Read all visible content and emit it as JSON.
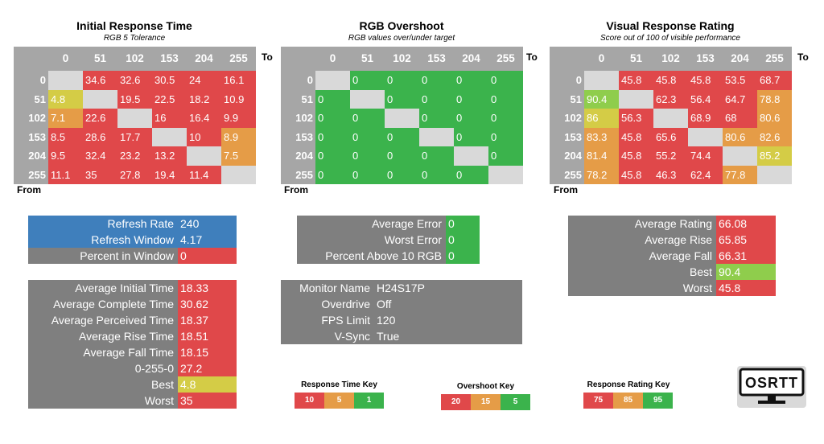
{
  "panels": [
    {
      "title": "Initial Response Time",
      "subtitle": "RGB 5 Tolerance",
      "to": "To",
      "from": "From",
      "cols": [
        "0",
        "51",
        "102",
        "153",
        "204",
        "255"
      ],
      "rows": [
        {
          "label": "0",
          "cells": [
            {
              "v": "",
              "c": "diag"
            },
            {
              "v": "34.6",
              "c": "red"
            },
            {
              "v": "32.6",
              "c": "red"
            },
            {
              "v": "30.5",
              "c": "red"
            },
            {
              "v": "24",
              "c": "red"
            },
            {
              "v": "16.1",
              "c": "red"
            }
          ]
        },
        {
          "label": "51",
          "cells": [
            {
              "v": "4.8",
              "c": "yellow"
            },
            {
              "v": "",
              "c": "diag"
            },
            {
              "v": "19.5",
              "c": "red"
            },
            {
              "v": "22.5",
              "c": "red"
            },
            {
              "v": "18.2",
              "c": "red"
            },
            {
              "v": "10.9",
              "c": "red"
            }
          ]
        },
        {
          "label": "102",
          "cells": [
            {
              "v": "7.1",
              "c": "orange"
            },
            {
              "v": "22.6",
              "c": "red"
            },
            {
              "v": "",
              "c": "diag"
            },
            {
              "v": "16",
              "c": "red"
            },
            {
              "v": "16.4",
              "c": "red"
            },
            {
              "v": "9.9",
              "c": "red"
            }
          ]
        },
        {
          "label": "153",
          "cells": [
            {
              "v": "8.5",
              "c": "red"
            },
            {
              "v": "28.6",
              "c": "red"
            },
            {
              "v": "17.7",
              "c": "red"
            },
            {
              "v": "",
              "c": "diag"
            },
            {
              "v": "10",
              "c": "red"
            },
            {
              "v": "8.9",
              "c": "orange"
            }
          ]
        },
        {
          "label": "204",
          "cells": [
            {
              "v": "9.5",
              "c": "red"
            },
            {
              "v": "32.4",
              "c": "red"
            },
            {
              "v": "23.2",
              "c": "red"
            },
            {
              "v": "13.2",
              "c": "red"
            },
            {
              "v": "",
              "c": "diag"
            },
            {
              "v": "7.5",
              "c": "orange"
            }
          ]
        },
        {
          "label": "255",
          "cells": [
            {
              "v": "11.1",
              "c": "red"
            },
            {
              "v": "35",
              "c": "red"
            },
            {
              "v": "27.8",
              "c": "red"
            },
            {
              "v": "19.4",
              "c": "red"
            },
            {
              "v": "11.4",
              "c": "red"
            },
            {
              "v": "",
              "c": "diag"
            }
          ]
        }
      ]
    },
    {
      "title": "RGB Overshoot",
      "subtitle": "RGB values over/under target",
      "to": "To",
      "from": "From",
      "cols": [
        "0",
        "51",
        "102",
        "153",
        "204",
        "255"
      ],
      "rows": [
        {
          "label": "0",
          "cells": [
            {
              "v": "",
              "c": "diag"
            },
            {
              "v": "0",
              "c": "green"
            },
            {
              "v": "0",
              "c": "green"
            },
            {
              "v": "0",
              "c": "green"
            },
            {
              "v": "0",
              "c": "green"
            },
            {
              "v": "0",
              "c": "green"
            }
          ]
        },
        {
          "label": "51",
          "cells": [
            {
              "v": "0",
              "c": "green"
            },
            {
              "v": "",
              "c": "diag"
            },
            {
              "v": "0",
              "c": "green"
            },
            {
              "v": "0",
              "c": "green"
            },
            {
              "v": "0",
              "c": "green"
            },
            {
              "v": "0",
              "c": "green"
            }
          ]
        },
        {
          "label": "102",
          "cells": [
            {
              "v": "0",
              "c": "green"
            },
            {
              "v": "0",
              "c": "green"
            },
            {
              "v": "",
              "c": "diag"
            },
            {
              "v": "0",
              "c": "green"
            },
            {
              "v": "0",
              "c": "green"
            },
            {
              "v": "0",
              "c": "green"
            }
          ]
        },
        {
          "label": "153",
          "cells": [
            {
              "v": "0",
              "c": "green"
            },
            {
              "v": "0",
              "c": "green"
            },
            {
              "v": "0",
              "c": "green"
            },
            {
              "v": "",
              "c": "diag"
            },
            {
              "v": "0",
              "c": "green"
            },
            {
              "v": "0",
              "c": "green"
            }
          ]
        },
        {
          "label": "204",
          "cells": [
            {
              "v": "0",
              "c": "green"
            },
            {
              "v": "0",
              "c": "green"
            },
            {
              "v": "0",
              "c": "green"
            },
            {
              "v": "0",
              "c": "green"
            },
            {
              "v": "",
              "c": "diag"
            },
            {
              "v": "0",
              "c": "green"
            }
          ]
        },
        {
          "label": "255",
          "cells": [
            {
              "v": "0",
              "c": "green"
            },
            {
              "v": "0",
              "c": "green"
            },
            {
              "v": "0",
              "c": "green"
            },
            {
              "v": "0",
              "c": "green"
            },
            {
              "v": "0",
              "c": "green"
            },
            {
              "v": "",
              "c": "diag"
            }
          ]
        }
      ]
    },
    {
      "title": "Visual Response Rating",
      "subtitle": "Score out of 100 of visible performance",
      "to": "To",
      "from": "From",
      "cols": [
        "0",
        "51",
        "102",
        "153",
        "204",
        "255"
      ],
      "rows": [
        {
          "label": "0",
          "cells": [
            {
              "v": "",
              "c": "diag"
            },
            {
              "v": "45.8",
              "c": "red"
            },
            {
              "v": "45.8",
              "c": "red"
            },
            {
              "v": "45.8",
              "c": "red"
            },
            {
              "v": "53.5",
              "c": "red"
            },
            {
              "v": "68.7",
              "c": "red"
            }
          ]
        },
        {
          "label": "51",
          "cells": [
            {
              "v": "90.4",
              "c": "lgreen"
            },
            {
              "v": "",
              "c": "diag"
            },
            {
              "v": "62.3",
              "c": "red"
            },
            {
              "v": "56.4",
              "c": "red"
            },
            {
              "v": "64.7",
              "c": "red"
            },
            {
              "v": "78.8",
              "c": "orange"
            }
          ]
        },
        {
          "label": "102",
          "cells": [
            {
              "v": "86",
              "c": "yellow"
            },
            {
              "v": "56.3",
              "c": "red"
            },
            {
              "v": "",
              "c": "diag"
            },
            {
              "v": "68.9",
              "c": "red"
            },
            {
              "v": "68",
              "c": "red"
            },
            {
              "v": "80.6",
              "c": "orange"
            }
          ]
        },
        {
          "label": "153",
          "cells": [
            {
              "v": "83.3",
              "c": "orange"
            },
            {
              "v": "45.8",
              "c": "red"
            },
            {
              "v": "65.6",
              "c": "red"
            },
            {
              "v": "",
              "c": "diag"
            },
            {
              "v": "80.6",
              "c": "orange"
            },
            {
              "v": "82.6",
              "c": "orange"
            }
          ]
        },
        {
          "label": "204",
          "cells": [
            {
              "v": "81.4",
              "c": "orange"
            },
            {
              "v": "45.8",
              "c": "red"
            },
            {
              "v": "55.2",
              "c": "red"
            },
            {
              "v": "74.4",
              "c": "red"
            },
            {
              "v": "",
              "c": "diag"
            },
            {
              "v": "85.2",
              "c": "yellow"
            }
          ]
        },
        {
          "label": "255",
          "cells": [
            {
              "v": "78.2",
              "c": "orange"
            },
            {
              "v": "45.8",
              "c": "red"
            },
            {
              "v": "46.3",
              "c": "red"
            },
            {
              "v": "62.4",
              "c": "red"
            },
            {
              "v": "77.8",
              "c": "orange"
            },
            {
              "v": "",
              "c": "diag"
            }
          ]
        }
      ]
    }
  ],
  "refresh": [
    {
      "label": "Refresh Rate",
      "value": "240",
      "lc": "blue",
      "vc": "blue"
    },
    {
      "label": "Refresh Window",
      "value": "4.17",
      "lc": "blue",
      "vc": "blue"
    },
    {
      "label": "Percent in Window",
      "value": "0",
      "lc": "gray",
      "vc": "red"
    }
  ],
  "timings": [
    {
      "label": "Average Initial Time",
      "value": "18.33",
      "vc": "red"
    },
    {
      "label": "Average Complete Time",
      "value": "30.62",
      "vc": "red"
    },
    {
      "label": "Average Perceived Time",
      "value": "18.37",
      "vc": "red"
    },
    {
      "label": "Average Rise Time",
      "value": "18.51",
      "vc": "red"
    },
    {
      "label": "Average Fall Time",
      "value": "18.15",
      "vc": "red"
    },
    {
      "label": "0-255-0",
      "value": "27.2",
      "vc": "red"
    },
    {
      "label": "Best",
      "value": "4.8",
      "vc": "yellow"
    },
    {
      "label": "Worst",
      "value": "35",
      "vc": "red"
    }
  ],
  "overshoot_stats": [
    {
      "label": "Average Error",
      "value": "0",
      "vc": "green"
    },
    {
      "label": "Worst Error",
      "value": "0",
      "vc": "green"
    },
    {
      "label": "Percent Above 10 RGB",
      "value": "0",
      "vc": "green"
    }
  ],
  "monitor": [
    {
      "label": "Monitor Name",
      "value": "H24S17P"
    },
    {
      "label": "Overdrive",
      "value": "Off"
    },
    {
      "label": "FPS Limit",
      "value": "120"
    },
    {
      "label": "V-Sync",
      "value": "True"
    }
  ],
  "rating_stats": [
    {
      "label": "Average Rating",
      "value": "66.08",
      "vc": "red"
    },
    {
      "label": "Average Rise",
      "value": "65.85",
      "vc": "red"
    },
    {
      "label": "Average Fall",
      "value": "66.31",
      "vc": "red"
    },
    {
      "label": "Best",
      "value": "90.4",
      "vc": "lgreen"
    },
    {
      "label": "Worst",
      "value": "45.8",
      "vc": "red"
    }
  ],
  "keys": [
    {
      "title": "Response Time Key",
      "items": [
        {
          "v": "10",
          "c": "red"
        },
        {
          "v": "5",
          "c": "orange"
        },
        {
          "v": "1",
          "c": "green"
        }
      ]
    },
    {
      "title": "Overshoot Key",
      "items": [
        {
          "v": "20",
          "c": "red"
        },
        {
          "v": "15",
          "c": "orange"
        },
        {
          "v": "5",
          "c": "green"
        }
      ]
    },
    {
      "title": "Response Rating Key",
      "items": [
        {
          "v": "75",
          "c": "red"
        },
        {
          "v": "85",
          "c": "orange"
        },
        {
          "v": "95",
          "c": "green"
        }
      ]
    }
  ],
  "logo": {
    "text": "OSRTT",
    "icon": "monitor-icon"
  }
}
